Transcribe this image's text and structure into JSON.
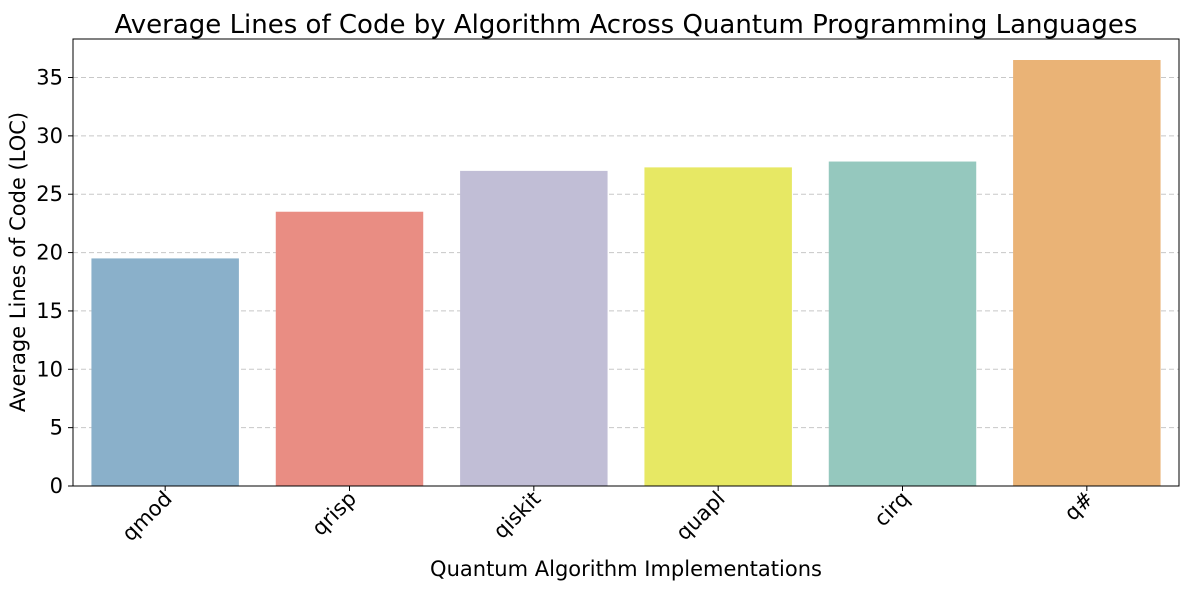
{
  "chart_data": {
    "type": "bar",
    "title": "Average Lines of Code by Algorithm Across Quantum Programming Languages",
    "xlabel": "Quantum Algorithm Implementations",
    "ylabel": "Average Lines of Code (LOC)",
    "categories": [
      "qmod",
      "qrisp",
      "qiskit",
      "quapl",
      "cirq",
      "q#"
    ],
    "values": [
      19.5,
      23.5,
      27.0,
      27.3,
      27.8,
      36.5
    ],
    "colors": [
      "#8ab0ca",
      "#e98d83",
      "#c1bed6",
      "#e7e864",
      "#95c8be",
      "#eab376"
    ],
    "ylim": [
      0,
      38.3
    ],
    "yticks": [
      0,
      5,
      10,
      15,
      20,
      25,
      30,
      35
    ],
    "grid": "y-dashed",
    "legend": "none"
  }
}
